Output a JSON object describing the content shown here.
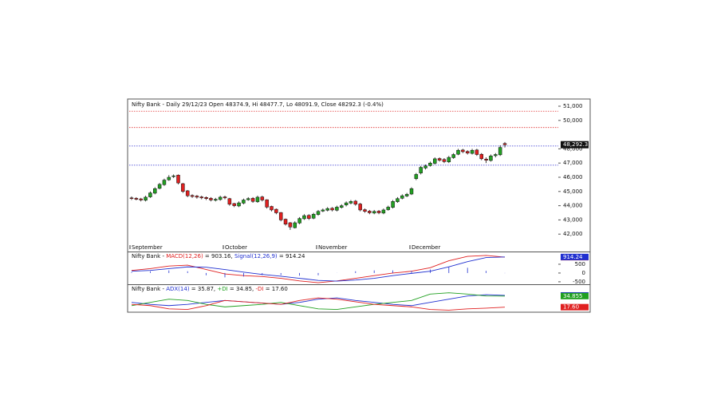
{
  "chart_data": [
    {
      "type": "candlestick",
      "title": "Nifty Bank - Daily 29/12/23 Open 48374.9, Hi 48477.7, Lo 48091.9, Close 48292.3 (-0.4%)",
      "categories": [
        "September",
        null,
        null,
        null,
        null,
        null,
        null,
        null,
        null,
        null,
        null,
        null,
        null,
        null,
        null,
        null,
        null,
        null,
        null,
        null,
        "October",
        null,
        null,
        null,
        null,
        null,
        null,
        null,
        null,
        null,
        null,
        null,
        null,
        null,
        null,
        null,
        null,
        null,
        null,
        null,
        "November",
        null,
        null,
        null,
        null,
        null,
        null,
        null,
        null,
        null,
        null,
        null,
        null,
        null,
        null,
        null,
        null,
        null,
        null,
        null,
        "December",
        null,
        null,
        null,
        null,
        null,
        null,
        null,
        null,
        null,
        null,
        null,
        null,
        null,
        null,
        null,
        null,
        null,
        null,
        null,
        null
      ],
      "open": [
        44550,
        44520,
        44480,
        44380,
        44620,
        44880,
        45220,
        45480,
        45820,
        46050,
        46150,
        45550,
        45050,
        44720,
        44680,
        44620,
        44580,
        44520,
        44380,
        44430,
        44620,
        44500,
        44150,
        43980,
        44180,
        44420,
        44520,
        44280,
        44620,
        44420,
        43950,
        43750,
        43520,
        43050,
        42800,
        42450,
        42780,
        43080,
        43320,
        43120,
        43380,
        43620,
        43680,
        43820,
        43680,
        43880,
        44050,
        44180,
        44320,
        44120,
        43720,
        43620,
        43480,
        43620,
        43480,
        43720,
        43880,
        44280,
        44520,
        44680,
        44820,
        45900,
        46300,
        46650,
        46820,
        46980,
        47320,
        47250,
        47080,
        47380,
        47620,
        47920,
        47820,
        47680,
        47920,
        47620,
        47280,
        47180,
        47520,
        47580,
        48374.9
      ],
      "high": [
        44650,
        44600,
        44550,
        44700,
        45000,
        45300,
        45600,
        45900,
        46150,
        46200,
        46200,
        45600,
        45100,
        44800,
        44750,
        44700,
        44650,
        44600,
        44550,
        44700,
        44700,
        44550,
        44200,
        44300,
        44500,
        44600,
        44600,
        44700,
        44700,
        44450,
        44000,
        43800,
        43550,
        43100,
        42850,
        42900,
        43200,
        43400,
        43400,
        43500,
        43700,
        43800,
        43900,
        43900,
        44000,
        44100,
        44300,
        44400,
        44400,
        44200,
        43800,
        43700,
        43700,
        43700,
        43800,
        44000,
        44400,
        44600,
        44800,
        44900,
        45300,
        46300,
        46800,
        46900,
        47100,
        47400,
        47400,
        47350,
        47500,
        47700,
        48000,
        48000,
        47900,
        48000,
        48000,
        47700,
        47400,
        47600,
        47700,
        48250,
        48477.7
      ],
      "low": [
        44400,
        44380,
        44300,
        44300,
        44550,
        44800,
        45150,
        45400,
        45750,
        45950,
        45500,
        44900,
        44600,
        44550,
        44500,
        44450,
        44400,
        44300,
        44300,
        44350,
        44450,
        44000,
        43900,
        43900,
        44100,
        44350,
        44200,
        44200,
        44300,
        43800,
        43600,
        43400,
        42900,
        42600,
        42300,
        42400,
        42700,
        43000,
        43000,
        43050,
        43300,
        43550,
        43600,
        43600,
        43600,
        43800,
        43950,
        44100,
        44000,
        43600,
        43500,
        43400,
        43400,
        43400,
        43400,
        43650,
        43800,
        44200,
        44450,
        44600,
        44750,
        45800,
        46200,
        46550,
        46750,
        46900,
        47100,
        47000,
        47000,
        47300,
        47550,
        47700,
        47600,
        47600,
        47500,
        47200,
        47000,
        47100,
        47400,
        47500,
        48091.9
      ],
      "close": [
        44500,
        44450,
        44400,
        44600,
        44900,
        45200,
        45500,
        45800,
        46000,
        46100,
        45600,
        45000,
        44700,
        44650,
        44600,
        44550,
        44500,
        44400,
        44450,
        44600,
        44550,
        44100,
        44000,
        44200,
        44400,
        44500,
        44300,
        44600,
        44400,
        43900,
        43700,
        43500,
        43000,
        42700,
        42500,
        42800,
        43100,
        43300,
        43100,
        43400,
        43600,
        43700,
        43800,
        43700,
        43900,
        44000,
        44200,
        44300,
        44100,
        43700,
        43600,
        43500,
        43600,
        43500,
        43700,
        43900,
        44300,
        44500,
        44700,
        44800,
        45200,
        46200,
        46700,
        46800,
        47000,
        47300,
        47200,
        47100,
        47400,
        47600,
        47900,
        47800,
        47700,
        47900,
        47600,
        47300,
        47200,
        47500,
        47600,
        48100,
        48292.3
      ],
      "last_label": "48,292.3",
      "up_color": "#22a022",
      "down_color": "#e02020",
      "ylim": [
        41450,
        51450
      ],
      "yticks": [
        {
          "value": 42000,
          "label": "42,000"
        },
        {
          "value": 43000,
          "label": "43,000"
        },
        {
          "value": 44000,
          "label": "44,000"
        },
        {
          "value": 45000,
          "label": "45,000"
        },
        {
          "value": 46000,
          "label": "46,000"
        },
        {
          "value": 47000,
          "label": "47,000"
        },
        {
          "value": 48000,
          "label": "48,000"
        },
        {
          "value": 50000,
          "label": "50,000"
        },
        {
          "value": 51000,
          "label": "51,000"
        }
      ],
      "hlines": [
        {
          "value": 50650,
          "color": "#e03030"
        },
        {
          "value": 49500,
          "color": "#e03030"
        },
        {
          "value": 48200,
          "color": "#3030d0"
        },
        {
          "value": 46850,
          "color": "#3030d0"
        }
      ]
    },
    {
      "type": "line",
      "legend_prefix": "Nifty Bank - ",
      "series": [
        {
          "name": "MACD(12,26)",
          "legend_suffix": " = 903.16, ",
          "color": "#e02020",
          "values": [
            150,
            250,
            400,
            450,
            200,
            -50,
            -150,
            -200,
            -300,
            -450,
            -550,
            -450,
            -300,
            -150,
            0,
            100,
            300,
            700,
            950,
            1000,
            903.16
          ]
        },
        {
          "name": "Signal(12,26,9)",
          "legend_suffix": " = 914.24",
          "color": "#2030d0",
          "values": [
            100,
            150,
            250,
            350,
            330,
            200,
            50,
            -80,
            -180,
            -300,
            -420,
            -460,
            -400,
            -300,
            -150,
            -20,
            100,
            350,
            650,
            880,
            914.24
          ]
        },
        {
          "style": "bar",
          "color": "#2030d0",
          "values": [
            50,
            100,
            150,
            100,
            -130,
            -250,
            -200,
            -120,
            -120,
            -150,
            -130,
            10,
            100,
            150,
            150,
            120,
            200,
            350,
            300,
            120,
            -11.08
          ]
        }
      ],
      "ylim": [
        -640,
        1180
      ],
      "yticks": [
        -500,
        0,
        500
      ]
    },
    {
      "type": "line",
      "legend_prefix": "Nifty Bank - ",
      "series": [
        {
          "name": "ADX(14)",
          "legend_suffix": " = 35.87, ",
          "color": "#2030d0",
          "values": [
            25,
            22,
            20,
            22,
            25,
            28,
            26,
            24,
            22,
            25,
            30,
            32,
            28,
            25,
            22,
            20,
            25,
            30,
            35,
            37,
            35.8676
          ]
        },
        {
          "name": "+DI",
          "legend_suffix": " = 34.85, ",
          "color": "#20a020",
          "values": [
            20,
            25,
            30,
            28,
            22,
            18,
            20,
            22,
            25,
            20,
            15,
            14,
            18,
            22,
            25,
            28,
            38,
            40,
            38,
            35,
            34.855
          ]
        },
        {
          "name": "-DI",
          "legend_suffix": " = 17.60",
          "color": "#e02020",
          "values": [
            22,
            20,
            15,
            14,
            20,
            28,
            26,
            24,
            22,
            28,
            32,
            30,
            26,
            22,
            20,
            18,
            14,
            13,
            15,
            16,
            17.6
          ],
          "value_labels": [
            null,
            null,
            null,
            null,
            null,
            null,
            null,
            null,
            null,
            null,
            null,
            null,
            null,
            null,
            null,
            null,
            null,
            null,
            null,
            null,
            "17.60"
          ]
        }
      ],
      "ylim": [
        11,
        52
      ]
    }
  ]
}
